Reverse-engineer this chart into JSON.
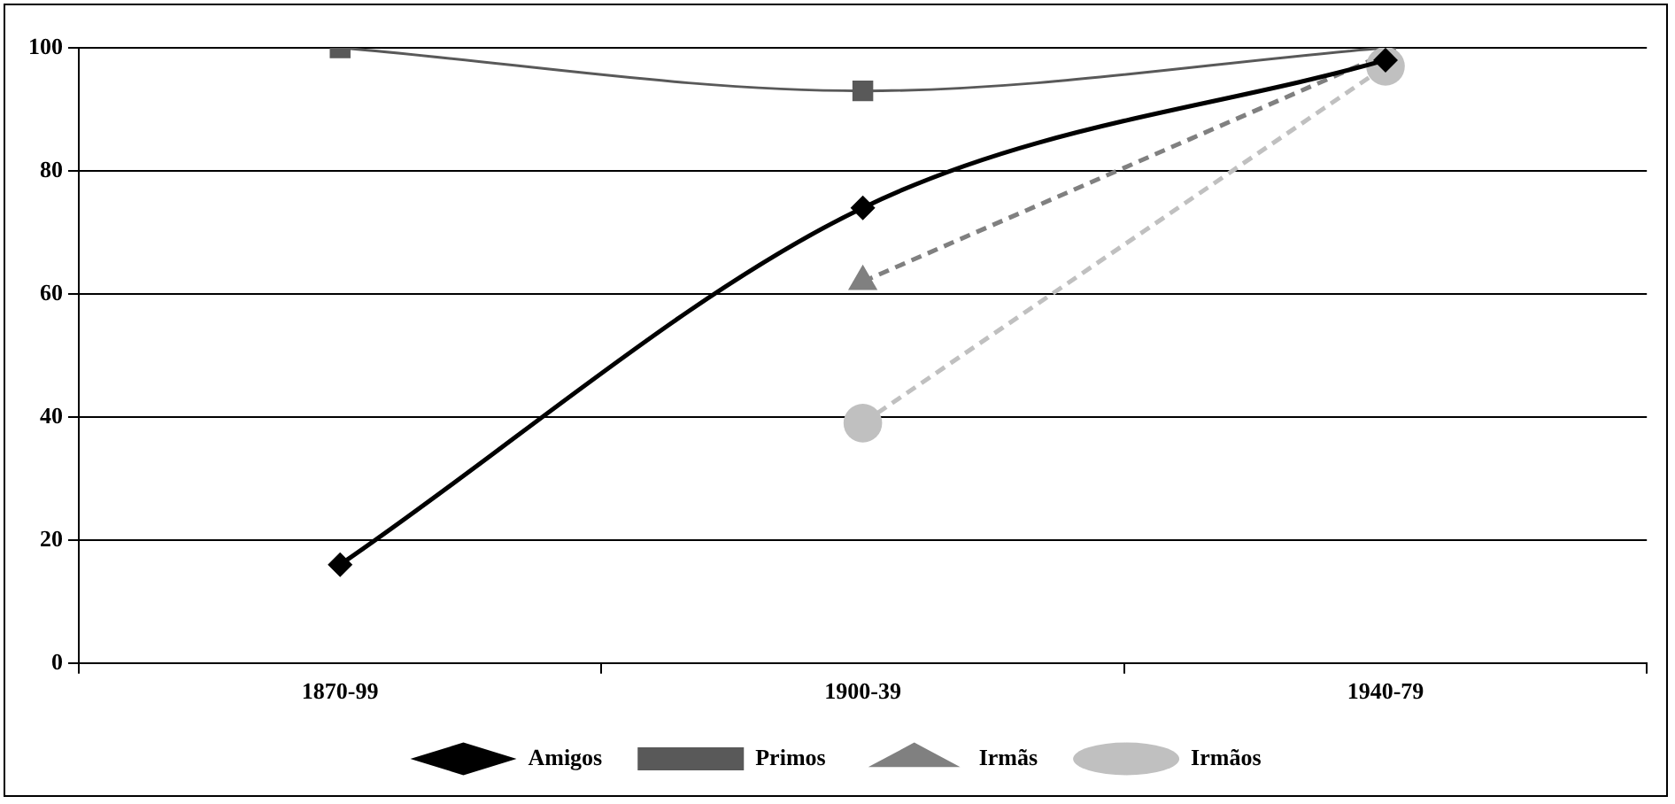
{
  "chart_data": {
    "type": "line",
    "categories": [
      "1870-99",
      "1900-39",
      "1940-79"
    ],
    "series": [
      {
        "name": "Amigos",
        "color": "#000000",
        "values": [
          16,
          74,
          98
        ],
        "marker": "diamond",
        "line_style": "solid"
      },
      {
        "name": "Primos",
        "color": "#595959",
        "values": [
          100,
          93,
          100
        ],
        "marker": "square",
        "line_style": "solid"
      },
      {
        "name": "Irmãs",
        "color": "#808080",
        "values": [
          null,
          62,
          99
        ],
        "marker": "triangle",
        "line_style": "dashed"
      },
      {
        "name": "Irmãos",
        "color": "#c0c0c0",
        "values": [
          null,
          39,
          97
        ],
        "marker": "circle",
        "line_style": "dashed"
      }
    ],
    "ylim": [
      0,
      100
    ],
    "yticks": [
      0,
      20,
      40,
      60,
      80,
      100
    ],
    "grid": "y",
    "legend": "bottom"
  }
}
